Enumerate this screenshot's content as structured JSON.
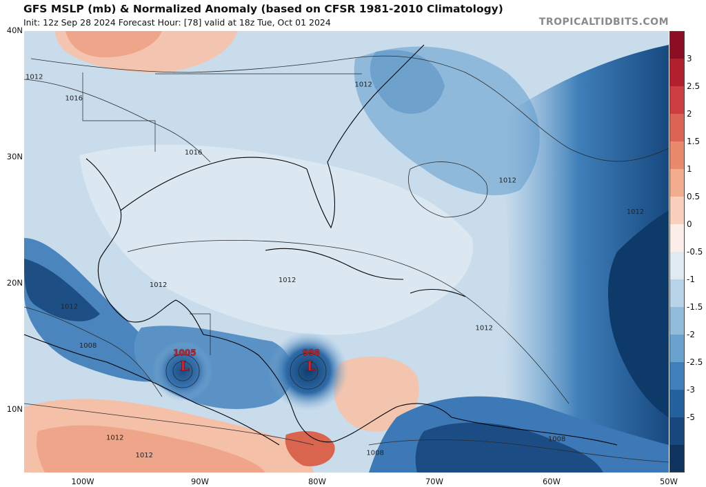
{
  "header": {
    "title": "GFS MSLP (mb) & Normalized Anomaly (based on CFSR 1981-2010 Climatology)",
    "subtitle": "Init: 12z Sep 28 2024   Forecast Hour: [78]   valid at 18z Tue, Oct 01 2024",
    "credit": "TROPICALTIDBITS.COM"
  },
  "map": {
    "lon_range": [
      -105,
      -50
    ],
    "lat_range": [
      5,
      40
    ],
    "lat_labels": [
      {
        "text": "40N",
        "lat": 40
      },
      {
        "text": "30N",
        "lat": 30
      },
      {
        "text": "20N",
        "lat": 20
      },
      {
        "text": "10N",
        "lat": 10
      }
    ],
    "lon_labels": [
      {
        "text": "100W",
        "lon": -100
      },
      {
        "text": "90W",
        "lon": -90
      },
      {
        "text": "80W",
        "lon": -80
      },
      {
        "text": "70W",
        "lon": -70
      },
      {
        "text": "60W",
        "lon": -60
      },
      {
        "text": "50W",
        "lon": -50
      }
    ],
    "isobar_labels": [
      {
        "text": "1016",
        "lon": -101.5,
        "lat": 34.5
      },
      {
        "text": "1016",
        "lon": -91.3,
        "lat": 30.2
      },
      {
        "text": "1012",
        "lon": -105.0,
        "lat": 36.2
      },
      {
        "text": "1012",
        "lon": -76.8,
        "lat": 35.6
      },
      {
        "text": "1012",
        "lon": -64.5,
        "lat": 28.0
      },
      {
        "text": "1012",
        "lon": -53.6,
        "lat": 25.5
      },
      {
        "text": "1012",
        "lon": -94.3,
        "lat": 19.7
      },
      {
        "text": "1012",
        "lon": -83.3,
        "lat": 20.1
      },
      {
        "text": "1012",
        "lon": -101.9,
        "lat": 18.0
      },
      {
        "text": "1012",
        "lon": -66.5,
        "lat": 16.3
      },
      {
        "text": "1008",
        "lon": -100.3,
        "lat": 14.9
      },
      {
        "text": "1012",
        "lon": -98.0,
        "lat": 7.6
      },
      {
        "text": "1012",
        "lon": -95.5,
        "lat": 6.2
      },
      {
        "text": "1008",
        "lon": -75.8,
        "lat": 6.4
      },
      {
        "text": "1008",
        "lon": -60.3,
        "lat": 7.5
      }
    ],
    "lows": [
      {
        "value": "1005",
        "symbol": "L",
        "lon": -91.3,
        "lat": 13.5
      },
      {
        "value": "998",
        "symbol": "L",
        "lon": -80.5,
        "lat": 13.5
      }
    ]
  },
  "colorbar": {
    "ticks": [
      "3",
      "2.5",
      "2",
      "1.5",
      "1",
      "0.5",
      "0",
      "-0.5",
      "-1",
      "-1.5",
      "-2",
      "-2.5",
      "-3",
      "-5"
    ],
    "colors": [
      "#8b0e22",
      "#b21f2d",
      "#cc3e3f",
      "#db6454",
      "#e88b6d",
      "#f2ad8f",
      "#f8d0bd",
      "#fbeeea",
      "#dfeaf3",
      "#b9d4e8",
      "#92bcdc",
      "#6aa2cf",
      "#3f7fba",
      "#24629f",
      "#17497f",
      "#0d335e"
    ]
  }
}
